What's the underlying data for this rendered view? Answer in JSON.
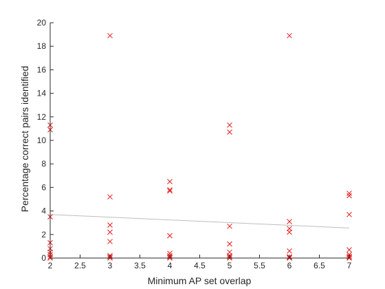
{
  "chart_data": {
    "type": "scatter",
    "title": "",
    "xlabel": "Minimum AP set overlap",
    "ylabel": "Percentage correct pairs identified",
    "xlim": [
      2,
      7
    ],
    "ylim": [
      0,
      20
    ],
    "xticks": [
      2,
      2.5,
      3,
      3.5,
      4,
      4.5,
      5,
      5.5,
      6,
      6.5,
      7
    ],
    "xtick_labels": [
      "2",
      "2.5",
      "3",
      "3.5",
      "4",
      "4.5",
      "5",
      "5.5",
      "6",
      "6.5",
      "7"
    ],
    "yticks": [
      0,
      2,
      4,
      6,
      8,
      10,
      12,
      14,
      16,
      18,
      20
    ],
    "ytick_labels": [
      "0",
      "2",
      "4",
      "6",
      "8",
      "10",
      "12",
      "14",
      "16",
      "18",
      "20"
    ],
    "grid": false,
    "legend": "none",
    "marker": "x",
    "marker_color": "#e31a1c",
    "trend_color": "#bdbdbd",
    "axis_color": "#262626",
    "series": [
      {
        "x": [
          2,
          2,
          2,
          2,
          2,
          2,
          2,
          2,
          2,
          3,
          3,
          3,
          3,
          3,
          3,
          3,
          3,
          4,
          4,
          4,
          4,
          4,
          4,
          4,
          4,
          5,
          5,
          5,
          5,
          5,
          5,
          5,
          5,
          6,
          6,
          6,
          6,
          6,
          6,
          6,
          6,
          7,
          7,
          7,
          7,
          7,
          7,
          7,
          7
        ],
        "y": [
          11.3,
          10.9,
          3.5,
          1.3,
          0.8,
          0.5,
          0.3,
          0.1,
          0,
          18.9,
          5.2,
          2.8,
          2.2,
          1.4,
          0.2,
          0.1,
          0,
          6.5,
          5.8,
          5.7,
          1.9,
          0.4,
          0.2,
          0.1,
          0,
          11.3,
          10.7,
          2.7,
          1.2,
          0.5,
          0.2,
          0.1,
          0,
          18.9,
          3.1,
          2.5,
          2.2,
          0.6,
          0.1,
          0.05,
          0,
          5.5,
          5.3,
          3.7,
          0.7,
          0.3,
          0.15,
          0.05,
          0
        ]
      }
    ],
    "trend_line": {
      "x": [
        2,
        7
      ],
      "y": [
        3.7,
        2.55
      ]
    }
  }
}
